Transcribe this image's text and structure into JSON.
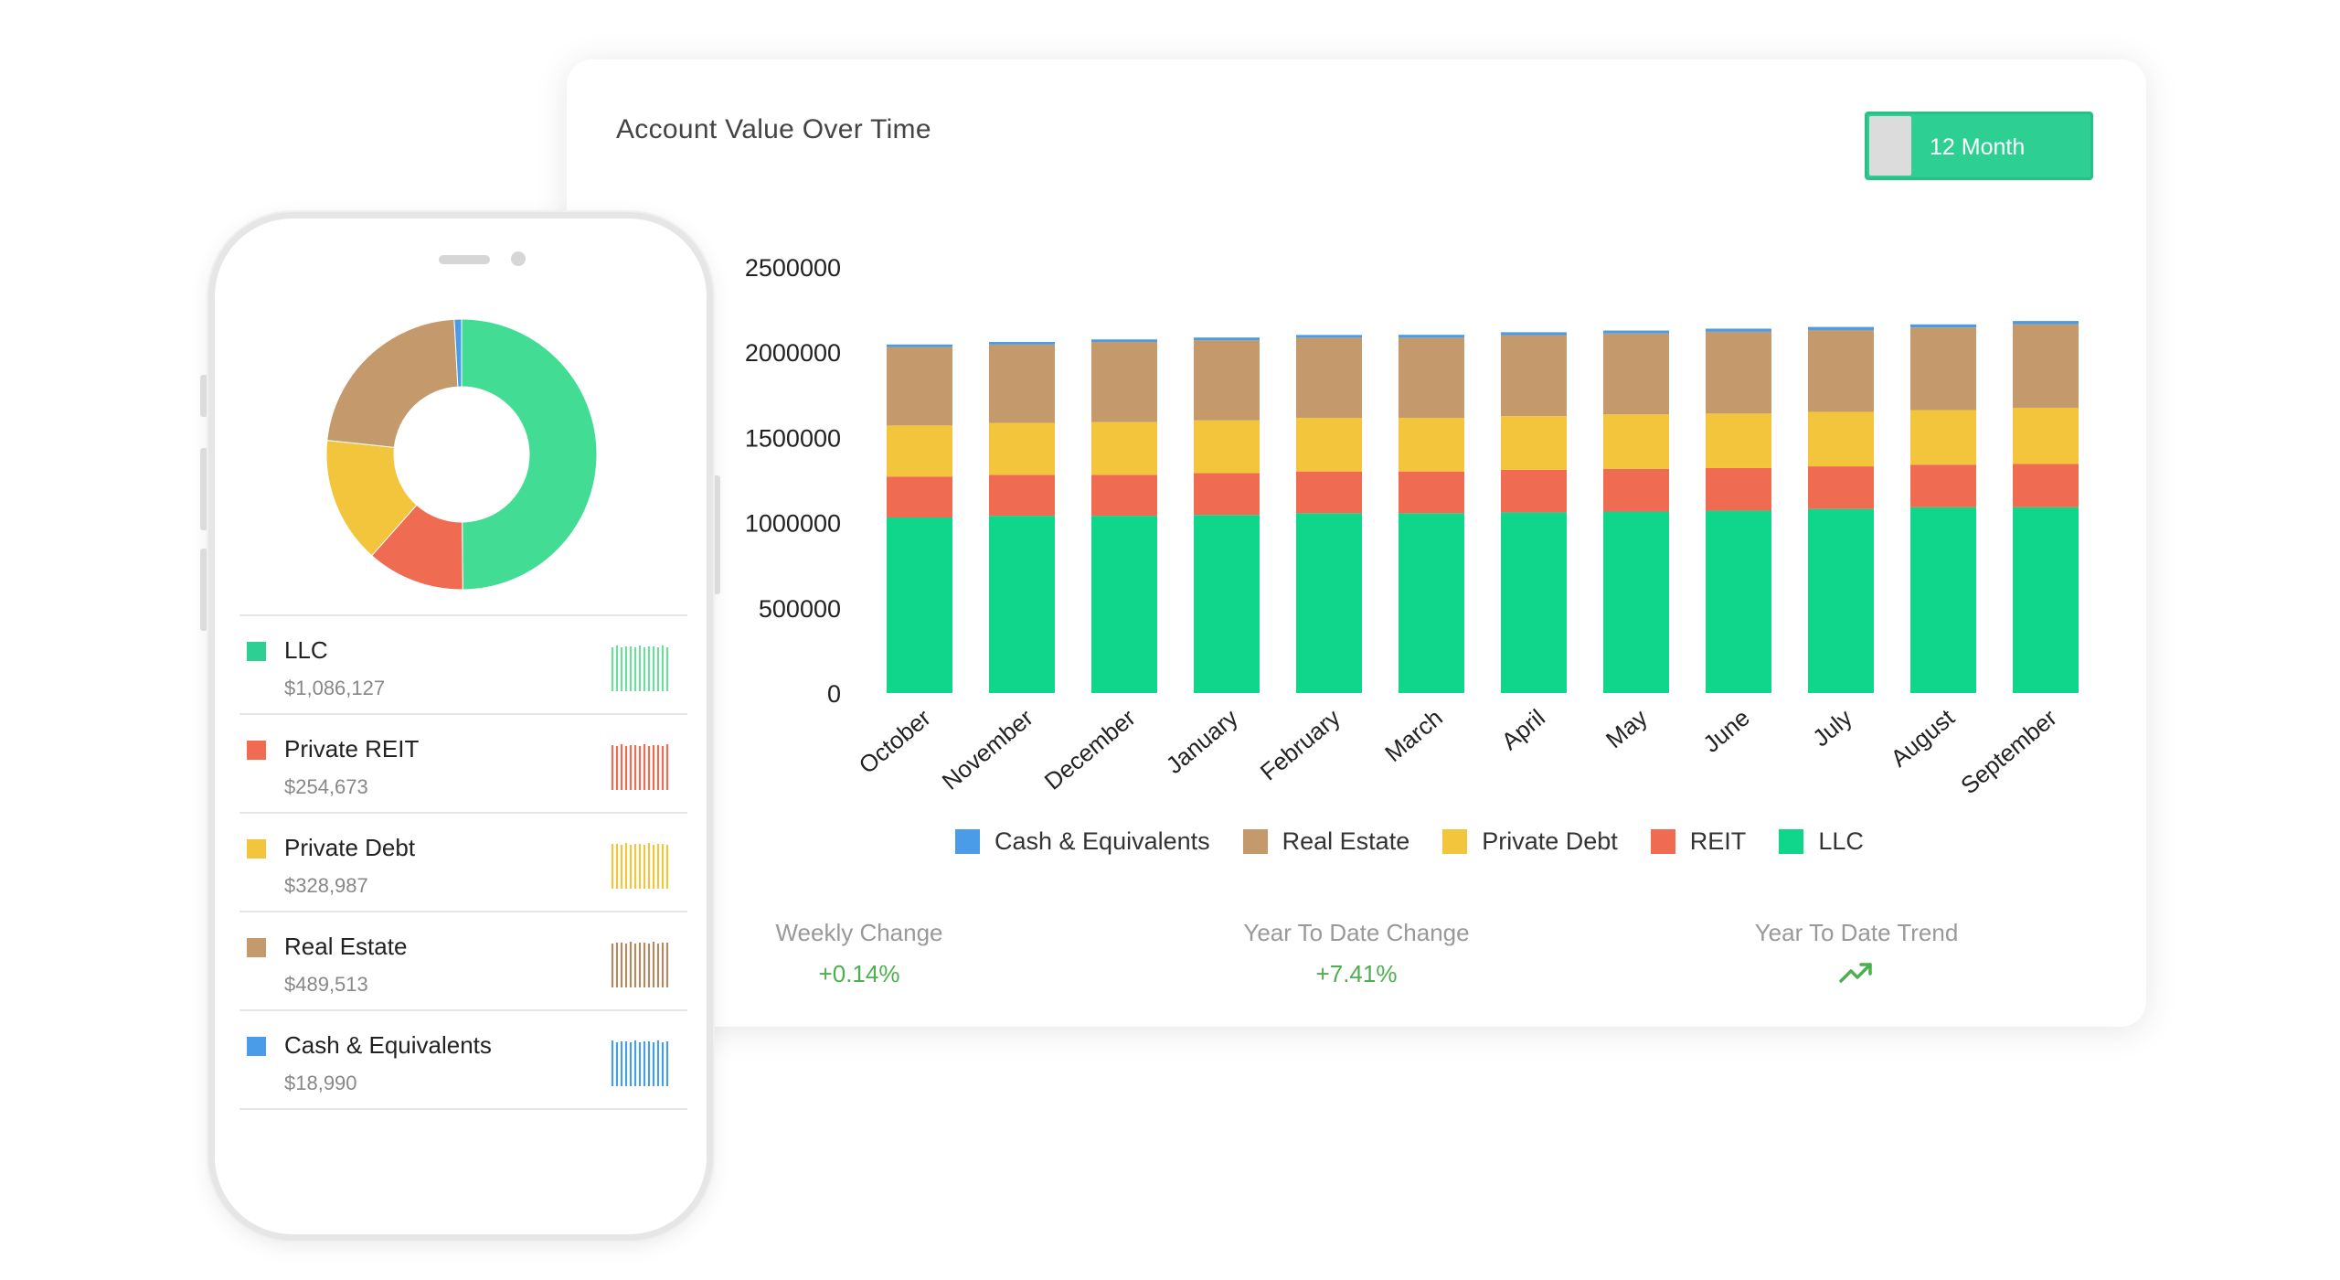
{
  "dashboard": {
    "title": "Account Value Over Time",
    "range_toggle_label": "12 Month",
    "stats": [
      {
        "label": "Weekly Change",
        "value": "+0.14%"
      },
      {
        "label": "Year To Date Change",
        "value": "+7.41%"
      },
      {
        "label": "Year To Date Trend",
        "icon": "trending-up-icon"
      }
    ]
  },
  "colors": {
    "cash": "#4a9be8",
    "real_estate": "#c49a6c",
    "private_debt": "#f2c53d",
    "reit": "#ef6b52",
    "llc": "#0fd68b",
    "accent": "#2ecf92",
    "positive": "#4caf50"
  },
  "chart_data": {
    "type": "bar",
    "stacked": true,
    "title": "Account Value Over Time",
    "categories": [
      "October",
      "November",
      "December",
      "January",
      "February",
      "March",
      "April",
      "May",
      "June",
      "July",
      "August",
      "September"
    ],
    "yticks": [
      0,
      500000,
      1000000,
      1500000,
      2000000,
      2500000
    ],
    "ylim": [
      0,
      2500000
    ],
    "series": [
      {
        "name": "LLC",
        "color": "#0fd68b",
        "values": [
          1030000,
          1040000,
          1040000,
          1045000,
          1055000,
          1055000,
          1060000,
          1065000,
          1070000,
          1080000,
          1090000,
          1090000
        ]
      },
      {
        "name": "REIT",
        "color": "#ef6b52",
        "values": [
          240000,
          240000,
          240000,
          245000,
          245000,
          245000,
          250000,
          250000,
          250000,
          250000,
          250000,
          254000
        ]
      },
      {
        "name": "Private Debt",
        "color": "#f2c53d",
        "values": [
          300000,
          305000,
          310000,
          310000,
          315000,
          315000,
          315000,
          320000,
          320000,
          320000,
          320000,
          330000
        ]
      },
      {
        "name": "Real Estate",
        "color": "#c49a6c",
        "values": [
          460000,
          460000,
          470000,
          470000,
          470000,
          470000,
          475000,
          475000,
          480000,
          480000,
          485000,
          490000
        ]
      },
      {
        "name": "Cash & Equivalents",
        "color": "#4a9be8",
        "values": [
          15000,
          15000,
          15000,
          16000,
          16000,
          17000,
          17000,
          17000,
          18000,
          18000,
          18000,
          19000
        ]
      }
    ],
    "legend": [
      {
        "name": "Cash & Equivalents",
        "color": "#4a9be8"
      },
      {
        "name": "Real Estate",
        "color": "#c49a6c"
      },
      {
        "name": "Private Debt",
        "color": "#f2c53d"
      },
      {
        "name": "REIT",
        "color": "#ef6b52"
      },
      {
        "name": "LLC",
        "color": "#0fd68b"
      }
    ]
  },
  "phone": {
    "donut": [
      {
        "name": "LLC",
        "value": 1086127,
        "color": "#43dc94"
      },
      {
        "name": "Private REIT",
        "value": 254673,
        "color": "#ef6b52"
      },
      {
        "name": "Private Debt",
        "value": 328987,
        "color": "#f2c53d"
      },
      {
        "name": "Real Estate",
        "value": 489513,
        "color": "#c49a6c"
      },
      {
        "name": "Cash & Equivalents",
        "value": 18990,
        "color": "#4a9be8"
      }
    ],
    "assets": [
      {
        "name": "LLC",
        "value": "$1,086,127",
        "color": "#2ecf92"
      },
      {
        "name": "Private REIT",
        "value": "$254,673",
        "color": "#ef6b52"
      },
      {
        "name": "Private Debt",
        "value": "$328,987",
        "color": "#f2c53d"
      },
      {
        "name": "Real Estate",
        "value": "$489,513",
        "color": "#c49a6c"
      },
      {
        "name": "Cash & Equivalents",
        "value": "$18,990",
        "color": "#4a9be8"
      }
    ]
  }
}
